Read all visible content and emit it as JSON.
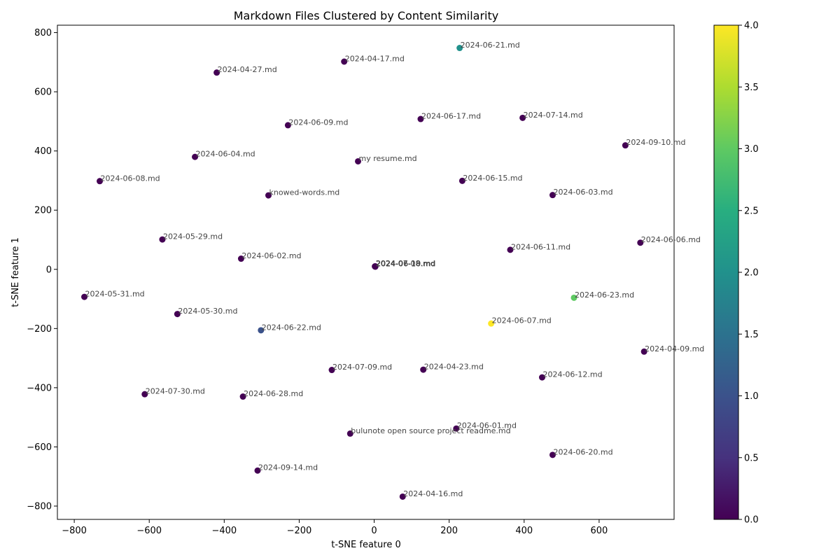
{
  "chart_data": {
    "type": "scatter",
    "title": "Markdown Files Clustered by Content Similarity",
    "xlabel": "t-SNE feature 0",
    "ylabel": "t-SNE feature 1",
    "xlim": [
      -845,
      800
    ],
    "ylim": [
      -845,
      825
    ],
    "xticks": [
      -800,
      -600,
      -400,
      -200,
      0,
      200,
      400,
      600
    ],
    "yticks": [
      -800,
      -600,
      -400,
      -200,
      0,
      200,
      400,
      600,
      800
    ],
    "grid": false,
    "colormap": "viridis",
    "colorbar": {
      "min": 0.0,
      "max": 4.0,
      "ticks": [
        "0.0",
        "0.5",
        "1.0",
        "1.5",
        "2.0",
        "2.5",
        "3.0",
        "3.5",
        "4.0"
      ]
    },
    "points": [
      {
        "label": "2024-06-21.md",
        "x": 228,
        "y": 748,
        "cluster": 2
      },
      {
        "label": "2024-04-17.md",
        "x": -80,
        "y": 702,
        "cluster": 0
      },
      {
        "label": "2024-04-27.md",
        "x": -420,
        "y": 665,
        "cluster": 0
      },
      {
        "label": "2024-06-17.md",
        "x": 124,
        "y": 508,
        "cluster": 0
      },
      {
        "label": "2024-07-14.md",
        "x": 396,
        "y": 512,
        "cluster": 0
      },
      {
        "label": "2024-06-09.md",
        "x": -230,
        "y": 487,
        "cluster": 0
      },
      {
        "label": "2024-09-10.md",
        "x": 670,
        "y": 419,
        "cluster": 0
      },
      {
        "label": "2024-06-04.md",
        "x": -478,
        "y": 380,
        "cluster": 0
      },
      {
        "label": "my resume.md",
        "x": -43,
        "y": 365,
        "cluster": 0
      },
      {
        "label": "2024-06-08.md",
        "x": -732,
        "y": 298,
        "cluster": 0
      },
      {
        "label": "2024-06-15.md",
        "x": 235,
        "y": 299,
        "cluster": 0
      },
      {
        "label": "2024-06-03.md",
        "x": 476,
        "y": 251,
        "cluster": 0
      },
      {
        "label": "knowed-words.md",
        "x": -282,
        "y": 250,
        "cluster": 0
      },
      {
        "label": "2024-05-29.md",
        "x": -565,
        "y": 101,
        "cluster": 0
      },
      {
        "label": "2024-06-06.md",
        "x": 710,
        "y": 90,
        "cluster": 0
      },
      {
        "label": "2024-06-02.md",
        "x": -355,
        "y": 36,
        "cluster": 0
      },
      {
        "label": "2024-06-11.md",
        "x": 363,
        "y": 66,
        "cluster": 0
      },
      {
        "label": "2024-07-08.md",
        "x": 2,
        "y": 10,
        "cluster": 0
      },
      {
        "label": "2024-06-10.md",
        "x": 3,
        "y": 9,
        "cluster": 0
      },
      {
        "label": "2024-06-19.md",
        "x": 3,
        "y": 10,
        "cluster": 0
      },
      {
        "label": "2024-05-31.md",
        "x": -773,
        "y": -93,
        "cluster": 0
      },
      {
        "label": "2024-06-23.md",
        "x": 533,
        "y": -96,
        "cluster": 3
      },
      {
        "label": "2024-05-30.md",
        "x": -525,
        "y": -151,
        "cluster": 0
      },
      {
        "label": "2024-06-07.md",
        "x": 312,
        "y": -183,
        "cluster": 4
      },
      {
        "label": "2024-06-22.md",
        "x": -302,
        "y": -206,
        "cluster": 1
      },
      {
        "label": "2024-04-09.md",
        "x": 720,
        "y": -278,
        "cluster": 0
      },
      {
        "label": "2024-07-09.md",
        "x": -113,
        "y": -340,
        "cluster": 0
      },
      {
        "label": "2024-04-23.md",
        "x": 131,
        "y": -339,
        "cluster": 0
      },
      {
        "label": "2024-06-12.md",
        "x": 448,
        "y": -365,
        "cluster": 0
      },
      {
        "label": "2024-07-30.md",
        "x": -612,
        "y": -422,
        "cluster": 0
      },
      {
        "label": "2024-06-28.md",
        "x": -350,
        "y": -430,
        "cluster": 0
      },
      {
        "label": "2024-06-01.md",
        "x": 219,
        "y": -538,
        "cluster": 0
      },
      {
        "label": "bulunote open source project readme.md",
        "x": -64,
        "y": -555,
        "cluster": 0
      },
      {
        "label": "2024-06-20.md",
        "x": 476,
        "y": -627,
        "cluster": 0
      },
      {
        "label": "2024-09-14.md",
        "x": -311,
        "y": -680,
        "cluster": 0
      },
      {
        "label": "2024-04-16.md",
        "x": 76,
        "y": -768,
        "cluster": 0
      }
    ]
  }
}
